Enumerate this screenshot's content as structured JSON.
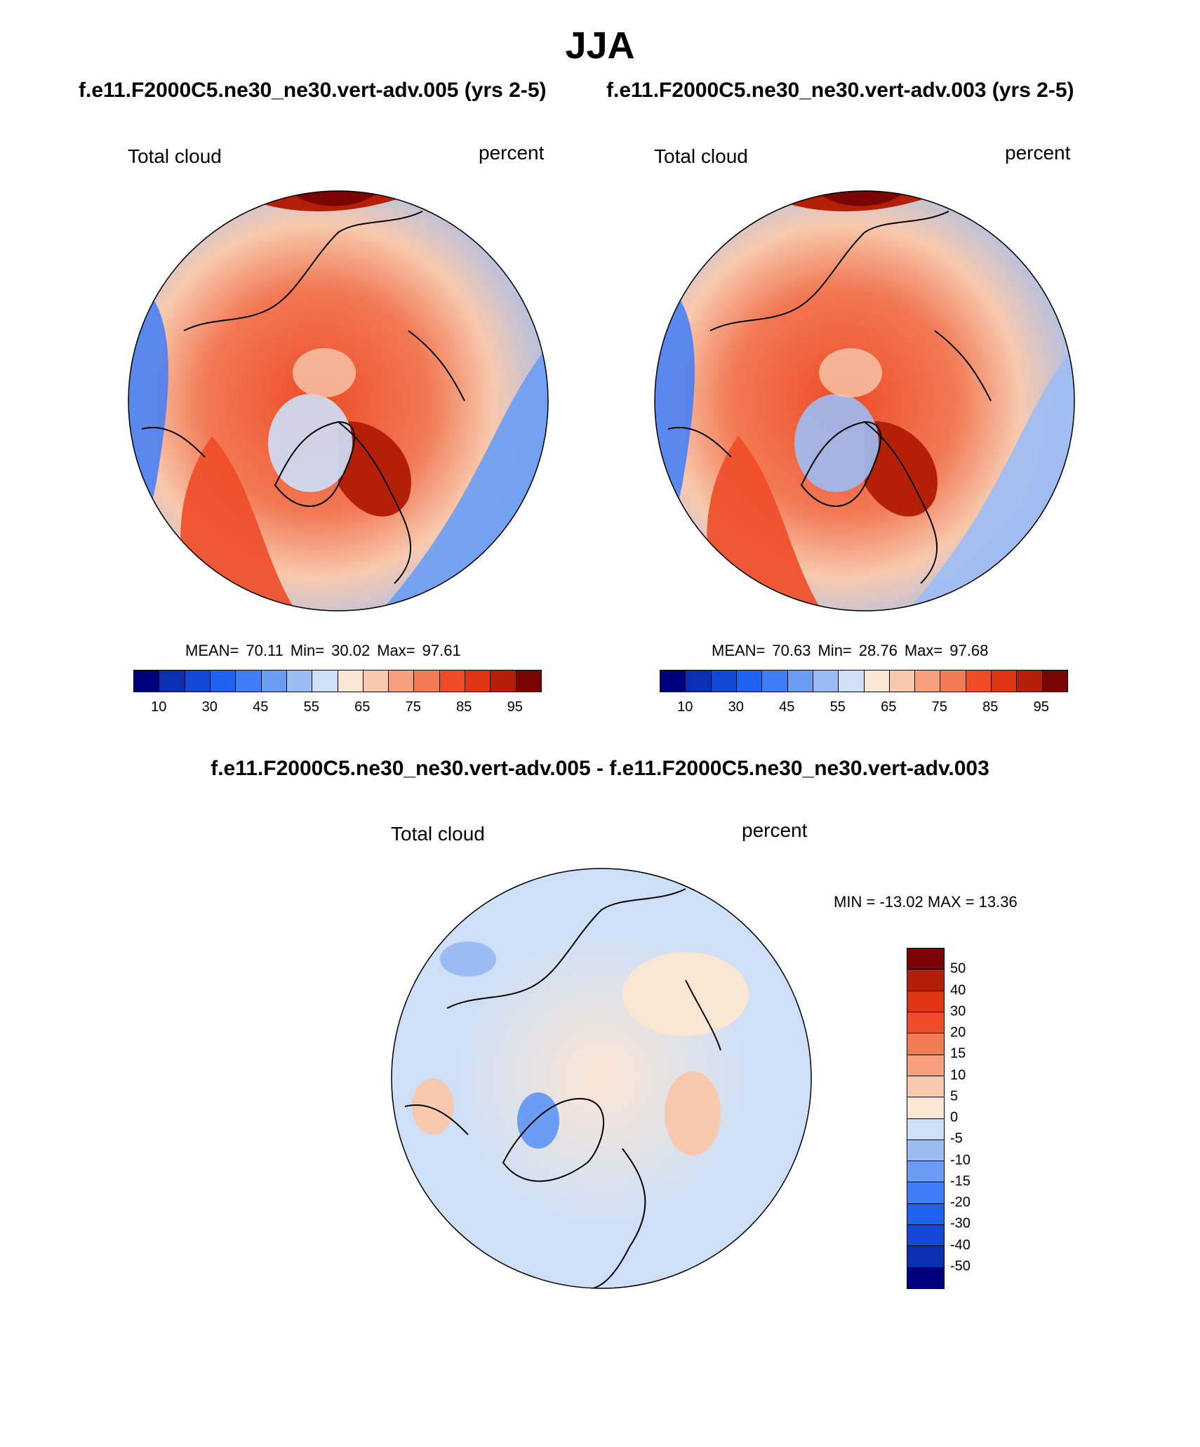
{
  "title": "JJA",
  "panels": [
    {
      "id": "case1",
      "case_title": "f.e11.F2000C5.ne30_ne30.vert-adv.005 (yrs 2-5)",
      "variable_label": "Total cloud",
      "units_label": "percent",
      "stats": {
        "mean_label": "MEAN=",
        "mean": "70.11",
        "min_label": "Min=",
        "min": "30.02",
        "max_label": "Max=",
        "max": "97.61"
      }
    },
    {
      "id": "case2",
      "case_title": "f.e11.F2000C5.ne30_ne30.vert-adv.003 (yrs 2-5)",
      "variable_label": "Total cloud",
      "units_label": "percent",
      "stats": {
        "mean_label": "MEAN=",
        "mean": "70.63",
        "min_label": "Min=",
        "min": "28.76",
        "max_label": "Max=",
        "max": "97.68"
      }
    }
  ],
  "field_colorbar": {
    "colors": [
      "#00007f",
      "#0a2fb2",
      "#1247d7",
      "#1f62f2",
      "#3f7df7",
      "#6b9df4",
      "#9cbdf4",
      "#cde0f8",
      "#fbe5d3",
      "#f8c9ae",
      "#f6a07e",
      "#f27a55",
      "#ee4b27",
      "#dd3411",
      "#b51f08",
      "#7a0403"
    ],
    "tick_labels": [
      "10",
      "30",
      "45",
      "55",
      "65",
      "75",
      "85",
      "95"
    ]
  },
  "difference": {
    "title": "f.e11.F2000C5.ne30_ne30.vert-adv.005 - f.e11.F2000C5.ne30_ne30.vert-adv.003",
    "variable_label": "Total cloud",
    "units_label": "percent",
    "minmax_text": "MIN = -13.02 MAX =  13.36",
    "colorbar": {
      "colors_top_to_bottom": [
        "#7a0403",
        "#b51f08",
        "#dd3411",
        "#ee4b27",
        "#f27a55",
        "#f6a07e",
        "#f8c9ae",
        "#fbe5d3",
        "#cde0f8",
        "#9cbdf4",
        "#6b9df4",
        "#3f7df7",
        "#1f62f2",
        "#1247d7",
        "#0a2fb2",
        "#00007f"
      ],
      "tick_labels_top_to_bottom": [
        "50",
        "40",
        "30",
        "20",
        "15",
        "10",
        "5",
        "0",
        "-5",
        "-10",
        "-15",
        "-20",
        "-30",
        "-40",
        "-50"
      ]
    }
  }
}
